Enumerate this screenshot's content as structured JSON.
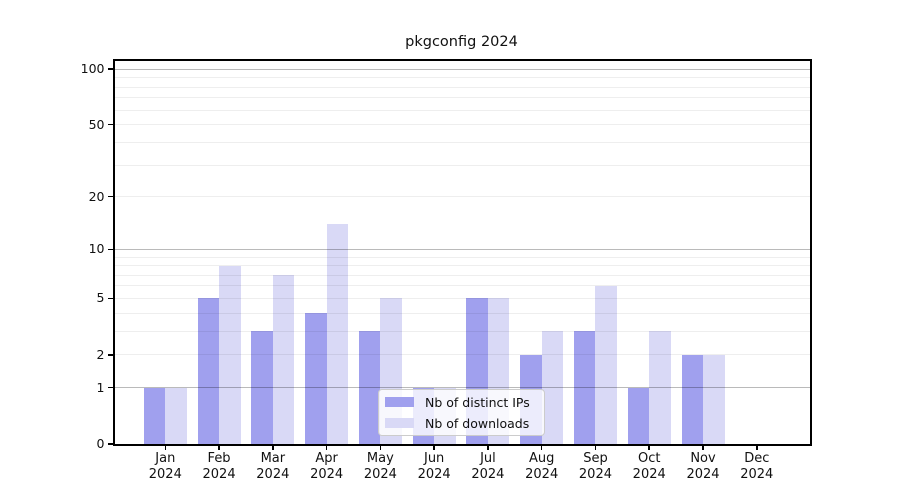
{
  "title": "pkgconfig 2024",
  "chart_data": {
    "type": "bar",
    "title": "pkgconfig 2024",
    "categories": [
      "Jan",
      "Feb",
      "Mar",
      "Apr",
      "May",
      "Jun",
      "Jul",
      "Aug",
      "Sep",
      "Oct",
      "Nov",
      "Dec"
    ],
    "category_year": "2024",
    "series": [
      {
        "name": "Nb of distinct IPs",
        "color": "#a0a0ee",
        "values": [
          1,
          5,
          3,
          4,
          3,
          1,
          5,
          2,
          3,
          1,
          2,
          0
        ]
      },
      {
        "name": "Nb of downloads",
        "color": "#d9d9f6",
        "values": [
          1,
          8,
          7,
          14,
          5,
          1,
          5,
          3,
          6,
          3,
          2,
          0
        ]
      }
    ],
    "xlabel": "",
    "ylabel": "",
    "y_scale": "log1p",
    "ylim": [
      0,
      112
    ],
    "y_ticks": [
      0,
      1,
      2,
      5,
      10,
      20,
      50,
      100
    ],
    "y_minor_gridlines": [
      2,
      3,
      4,
      5,
      6,
      7,
      8,
      9,
      20,
      30,
      40,
      50,
      60,
      70,
      80,
      90
    ],
    "y_major_gridlines": [
      1,
      10,
      100
    ],
    "grid": true,
    "legend_position": "lower center",
    "legend_entries": [
      "Nb of distinct IPs",
      "Nb of downloads"
    ]
  },
  "colors": {
    "background": "#ffffff",
    "bar_distinct_ips": "#a0a0ee",
    "bar_downloads": "#d9d9f6",
    "spine": "#000000",
    "major_grid": "#b8b8b8",
    "minor_grid": "#ebebeb",
    "legend_border": "#cccccc",
    "text": "#111111"
  }
}
